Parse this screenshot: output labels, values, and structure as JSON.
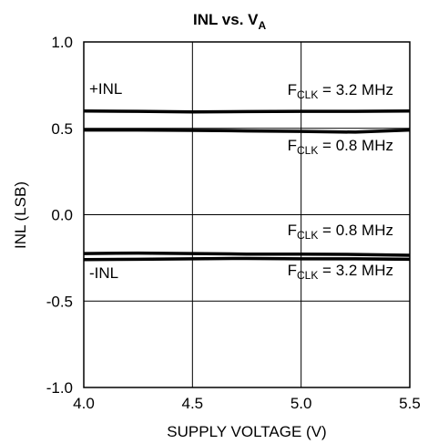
{
  "chart_data": {
    "type": "line",
    "title": {
      "main": "INL vs. V",
      "sub": "A"
    },
    "xlabel": "SUPPLY VOLTAGE (V)",
    "ylabel": "INL (LSB)",
    "xlim": [
      4.0,
      5.5
    ],
    "ylim": [
      -1.0,
      1.0
    ],
    "x_ticks": [
      4.0,
      4.5,
      5.0,
      5.5
    ],
    "x_tick_labels": [
      "4.0",
      "4.5",
      "5.0",
      "5.5"
    ],
    "y_ticks": [
      1.0,
      0.5,
      0.0,
      -0.5,
      -1.0
    ],
    "y_tick_labels": [
      "1.0",
      "0.5",
      "0.0",
      "-0.5",
      "-1.0"
    ],
    "grid": true,
    "series": [
      {
        "x": [
          4.0,
          4.25,
          4.5,
          4.75,
          5.0,
          5.25,
          5.5
        ],
        "y": [
          0.6,
          0.598,
          0.595,
          0.597,
          0.598,
          0.598,
          0.6
        ]
      },
      {
        "x": [
          4.0,
          4.25,
          4.5,
          4.75,
          5.0,
          5.25,
          5.5
        ],
        "y": [
          0.49,
          0.49,
          0.488,
          0.485,
          0.482,
          0.478,
          0.49
        ]
      },
      {
        "x": [
          4.0,
          4.25,
          4.5,
          4.75,
          5.0,
          5.25,
          5.5
        ],
        "y": [
          -0.225,
          -0.222,
          -0.225,
          -0.228,
          -0.228,
          -0.23,
          -0.235
        ]
      },
      {
        "x": [
          4.0,
          4.25,
          4.5,
          4.75,
          5.0,
          5.25,
          5.5
        ],
        "y": [
          -0.26,
          -0.258,
          -0.255,
          -0.253,
          -0.255,
          -0.255,
          -0.258
        ]
      }
    ],
    "annotations": {
      "plus_inl": "+INL",
      "minus_inl": "-INL",
      "fclk_main": "F",
      "fclk_sub": "CLK",
      "label_32": " = 3.2 MHz",
      "label_08": " = 0.8 MHz"
    }
  }
}
